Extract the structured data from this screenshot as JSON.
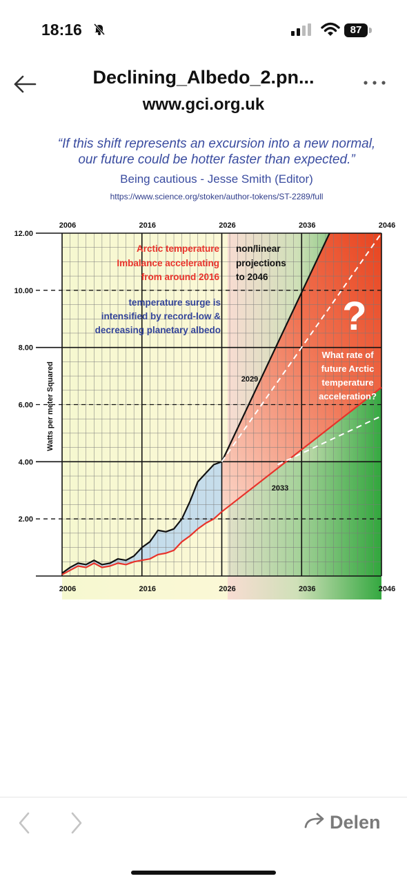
{
  "status_bar": {
    "time": "18:16",
    "battery": "87",
    "icons": [
      "bell-slash-icon",
      "cell-signal-icon",
      "wifi-icon",
      "battery-icon"
    ]
  },
  "header": {
    "title": "Declining_Albedo_2.pn...",
    "subtitle": "www.gci.org.uk",
    "back_icon": "arrow-left-icon",
    "menu_icon": "ellipsis-icon"
  },
  "image": {
    "quote_line1": "“If this shift represents an excursion into a new normal,",
    "quote_line2": "our future could be hotter faster than expected.”",
    "attribution": "Being cautious - Jesse Smith (Editor)",
    "url": "https://www.science.org/stoken/author-tokens/ST-2289/full",
    "ylabel": "Watts per meter Squared",
    "annotation_red": [
      "Arctic temperature",
      "Imbalance accelerating",
      "from around 2016"
    ],
    "annotation_black": [
      "non/linear",
      "projections",
      "to 2046"
    ],
    "annotation_blue": [
      "temperature surge is",
      "intensified by record-low &",
      "decreasing planetary albedo"
    ],
    "question_mark": "?",
    "annotation_white": [
      "What rate of",
      "future Arctic",
      "temperature",
      "acceleration?"
    ],
    "label_2029": "2029",
    "label_2033": "2033"
  },
  "chart_data": {
    "type": "line",
    "xticks": [
      "2006",
      "2016",
      "2026",
      "2036",
      "2046"
    ],
    "yticks": [
      "2.00",
      "4.00",
      "6.00",
      "8.00",
      "10.00",
      "12.00"
    ],
    "xlim": [
      2006,
      2046
    ],
    "ylim": [
      0,
      12
    ],
    "series": [
      {
        "color": "#111111",
        "x": [
          2006,
          2007,
          2008,
          2009,
          2010,
          2011,
          2012,
          2013,
          2014,
          2015,
          2016,
          2017,
          2018,
          2019,
          2020,
          2021,
          2022,
          2023,
          2024,
          2025,
          2026
        ],
        "y": [
          0.1,
          0.3,
          0.45,
          0.4,
          0.55,
          0.4,
          0.45,
          0.6,
          0.55,
          0.7,
          1.0,
          1.2,
          1.6,
          1.55,
          1.65,
          2.0,
          2.6,
          3.3,
          3.6,
          3.9,
          4.0
        ]
      },
      {
        "color": "#e8322a",
        "x": [
          2006,
          2007,
          2008,
          2009,
          2010,
          2011,
          2012,
          2013,
          2014,
          2015,
          2016,
          2017,
          2018,
          2019,
          2020,
          2021,
          2022,
          2023,
          2024,
          2025,
          2026
        ],
        "y": [
          0.05,
          0.2,
          0.35,
          0.3,
          0.45,
          0.3,
          0.35,
          0.45,
          0.4,
          0.5,
          0.55,
          0.6,
          0.75,
          0.8,
          0.9,
          1.2,
          1.4,
          1.65,
          1.85,
          2.0,
          2.25
        ]
      },
      {
        "color": "#111111",
        "style": "solid",
        "x": [
          2026,
          2039.5
        ],
        "y": [
          4.0,
          12.0
        ]
      },
      {
        "color": "#ffffff",
        "style": "dashed",
        "x": [
          2026,
          2046
        ],
        "y": [
          4.0,
          12.0
        ]
      },
      {
        "color": "#e8322a",
        "style": "solid",
        "x": [
          2026,
          2046
        ],
        "y": [
          2.25,
          6.6
        ]
      },
      {
        "color": "#ffffff",
        "style": "dashed",
        "x": [
          2033,
          2046
        ],
        "y": [
          3.9,
          5.6
        ]
      }
    ]
  },
  "bottom_bar": {
    "prev_icon": "chevron-left-icon",
    "next_icon": "chevron-right-icon",
    "share_label": "Delen",
    "share_icon": "share-arrow-icon"
  }
}
